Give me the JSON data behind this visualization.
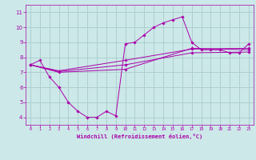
{
  "background_color": "#cce8e8",
  "grid_color": "#aacccc",
  "line_color": "#aa00aa",
  "marker_color": "#aa00aa",
  "xlim": [
    -0.5,
    23.5
  ],
  "ylim": [
    3.5,
    11.5
  ],
  "yticks": [
    4,
    5,
    6,
    7,
    8,
    9,
    10,
    11
  ],
  "xticks": [
    0,
    1,
    2,
    3,
    4,
    5,
    6,
    7,
    8,
    9,
    10,
    11,
    12,
    13,
    14,
    15,
    16,
    17,
    18,
    19,
    20,
    21,
    22,
    23
  ],
  "xlabel": "Windchill (Refroidissement éolien,°C)",
  "xlabel_color": "#aa00aa",
  "tick_color": "#aa00aa",
  "series1_x": [
    0,
    1,
    2,
    3,
    4,
    5,
    6,
    7,
    8,
    9,
    10,
    11,
    12,
    13,
    14,
    15,
    16,
    17,
    18,
    19,
    20,
    21,
    22,
    23
  ],
  "series1_y": [
    7.5,
    7.8,
    6.7,
    6.0,
    5.0,
    4.4,
    4.0,
    4.0,
    4.4,
    4.1,
    8.9,
    9.0,
    9.5,
    10.0,
    10.3,
    10.5,
    10.7,
    9.0,
    8.5,
    8.5,
    8.5,
    8.3,
    8.3,
    8.9
  ],
  "series2_x": [
    0,
    3,
    10,
    17,
    23
  ],
  "series2_y": [
    7.5,
    7.0,
    7.2,
    8.6,
    8.5
  ],
  "series3_x": [
    0,
    3,
    10,
    17,
    23
  ],
  "series3_y": [
    7.5,
    7.05,
    7.5,
    8.3,
    8.35
  ],
  "series4_x": [
    0,
    3,
    10,
    17,
    23
  ],
  "series4_y": [
    7.5,
    7.1,
    7.8,
    8.55,
    8.6
  ],
  "figsize": [
    3.2,
    2.0
  ],
  "dpi": 100
}
